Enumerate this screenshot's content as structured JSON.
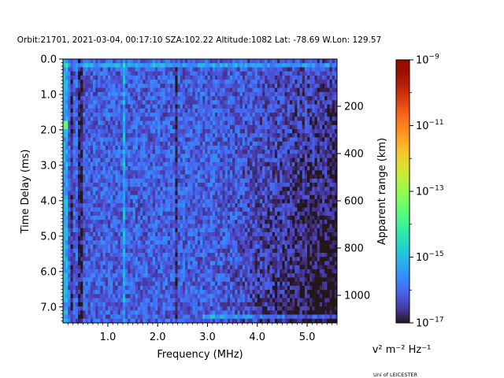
{
  "chart_data": {
    "type": "heatmap",
    "title": "Orbit:21701, 2021-03-04, 00:17:10 SZA:102.22 Altitude:1082 Lat: -78.69 W.Lon: 129.57",
    "xlabel": "Frequency (MHz)",
    "ylabel": "Time Delay (ms)",
    "y2label": "Apparent range (km)",
    "colorbar_label": "v² m⁻² Hz⁻¹",
    "xlim": [
      0.1,
      5.6
    ],
    "ylim": [
      7.45,
      0.0
    ],
    "xticks": [
      {
        "value": 1.0,
        "label": "1.0"
      },
      {
        "value": 2.0,
        "label": "2.0"
      },
      {
        "value": 3.0,
        "label": "3.0"
      },
      {
        "value": 4.0,
        "label": "4.0"
      },
      {
        "value": 5.0,
        "label": "5.0"
      }
    ],
    "yticks": [
      {
        "value": 0.0,
        "label": "0.0"
      },
      {
        "value": 1.0,
        "label": "1.0"
      },
      {
        "value": 2.0,
        "label": "2.0"
      },
      {
        "value": 3.0,
        "label": "3.0"
      },
      {
        "value": 4.0,
        "label": "4.0"
      },
      {
        "value": 5.0,
        "label": "5.0"
      },
      {
        "value": 6.0,
        "label": "6.0"
      },
      {
        "value": 7.0,
        "label": "7.0"
      }
    ],
    "y2ticks": [
      {
        "value": 200,
        "label": "200"
      },
      {
        "value": 400,
        "label": "400"
      },
      {
        "value": 600,
        "label": "600"
      },
      {
        "value": 800,
        "label": "800"
      },
      {
        "value": 1000,
        "label": "1000"
      }
    ],
    "colorbar": {
      "scale": "log",
      "min": 1e-17,
      "max": 1e-09,
      "colormap": "turbo",
      "ticks": [
        {
          "value": 1e-17,
          "base": "10",
          "exp": "−17"
        },
        {
          "value": 1e-15,
          "base": "10",
          "exp": "−15"
        },
        {
          "value": 1e-13,
          "base": "10",
          "exp": "−13"
        },
        {
          "value": 1e-11,
          "base": "10",
          "exp": "−11"
        },
        {
          "value": 1e-09,
          "base": "10",
          "exp": "−9"
        }
      ]
    },
    "field": {
      "background_log10": -16.1,
      "strong_frequency_lines_mhz": [
        0.15,
        1.33
      ],
      "dark_frequency_lines_mhz": [
        0.28,
        0.45,
        2.38
      ],
      "strong_delay_rows_ms": [
        0.15,
        7.25
      ],
      "notable_spot": {
        "frequency_mhz": 0.15,
        "delay_ms": 1.9,
        "log10": -13.6
      }
    }
  },
  "footer": {
    "credit": "Uni of LEICESTER"
  },
  "colors": {
    "background": "#ffffff",
    "axes": "#000000"
  }
}
